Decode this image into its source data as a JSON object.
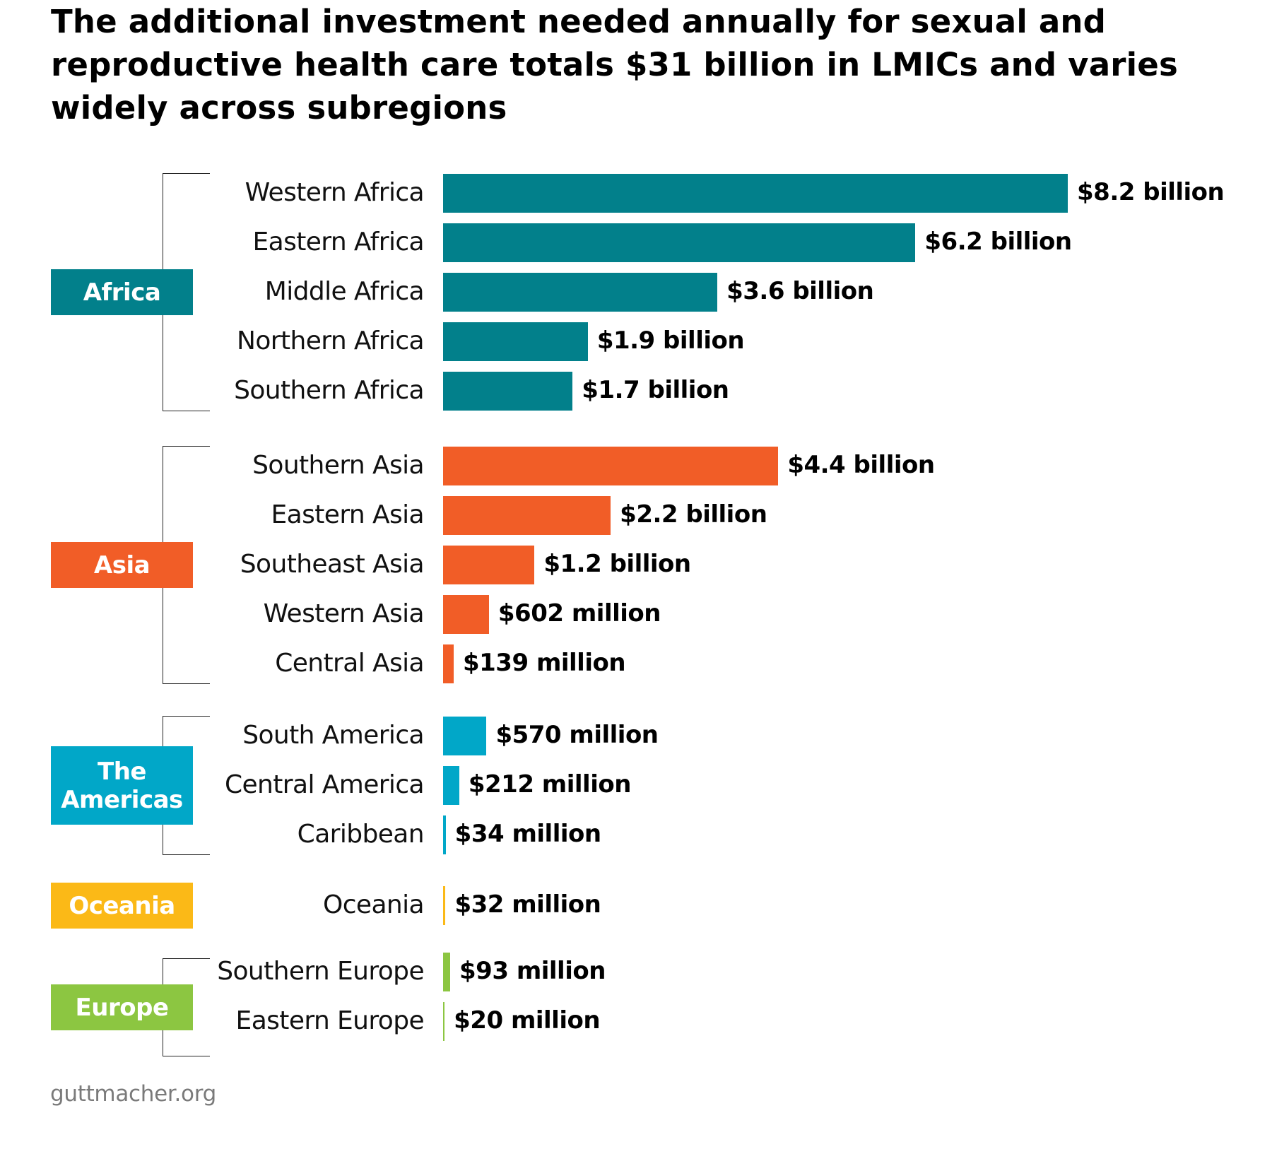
{
  "chart_data": {
    "type": "bar",
    "orientation": "horizontal",
    "title": "The additional investment needed annually for sexual and reproductive health care totals $31 billion in LMICs and varies widely across subregions",
    "title_lines": [
      "The additional investment needed annually for sexual and",
      "reproductive health care totals $31 billion in LMICs and varies",
      "widely across subregions"
    ],
    "unit": "USD billion",
    "xlim": [
      0,
      8.2
    ],
    "grid": false,
    "groups": [
      {
        "name": "Africa",
        "label_lines": [
          "Africa"
        ],
        "color": "#02808b",
        "items": [
          {
            "label": "Western Africa",
            "value": 8.2,
            "value_label": "$8.2 billion"
          },
          {
            "label": "Eastern Africa",
            "value": 6.2,
            "value_label": "$6.2 billion"
          },
          {
            "label": "Middle Africa",
            "value": 3.6,
            "value_label": "$3.6 billion"
          },
          {
            "label": "Northern Africa",
            "value": 1.9,
            "value_label": "$1.9 billion"
          },
          {
            "label": "Southern Africa",
            "value": 1.7,
            "value_label": "$1.7 billion"
          }
        ]
      },
      {
        "name": "Asia",
        "label_lines": [
          "Asia"
        ],
        "color": "#f15d27",
        "items": [
          {
            "label": "Southern Asia",
            "value": 4.4,
            "value_label": "$4.4 billion"
          },
          {
            "label": "Eastern Asia",
            "value": 2.2,
            "value_label": "$2.2 billion"
          },
          {
            "label": "Southeast Asia",
            "value": 1.2,
            "value_label": "$1.2 billion"
          },
          {
            "label": "Western Asia",
            "value": 0.602,
            "value_label": "$602 million"
          },
          {
            "label": "Central Asia",
            "value": 0.139,
            "value_label": "$139 million"
          }
        ]
      },
      {
        "name": "The Americas",
        "label_lines": [
          "The",
          "Americas"
        ],
        "color": "#01a7c8",
        "items": [
          {
            "label": "South America",
            "value": 0.57,
            "value_label": "$570 million"
          },
          {
            "label": "Central America",
            "value": 0.212,
            "value_label": "$212 million"
          },
          {
            "label": "Caribbean",
            "value": 0.034,
            "value_label": "$34 million"
          }
        ]
      },
      {
        "name": "Oceania",
        "label_lines": [
          "Oceania"
        ],
        "color": "#fbb917",
        "items": [
          {
            "label": "Oceania",
            "value": 0.032,
            "value_label": "$32 million"
          }
        ]
      },
      {
        "name": "Europe",
        "label_lines": [
          "Europe"
        ],
        "color": "#8cc641",
        "items": [
          {
            "label": "Southern Europe",
            "value": 0.093,
            "value_label": "$93 million"
          },
          {
            "label": "Eastern Europe",
            "value": 0.02,
            "value_label": "$20 million"
          }
        ]
      }
    ]
  },
  "source": "guttmacher.org"
}
